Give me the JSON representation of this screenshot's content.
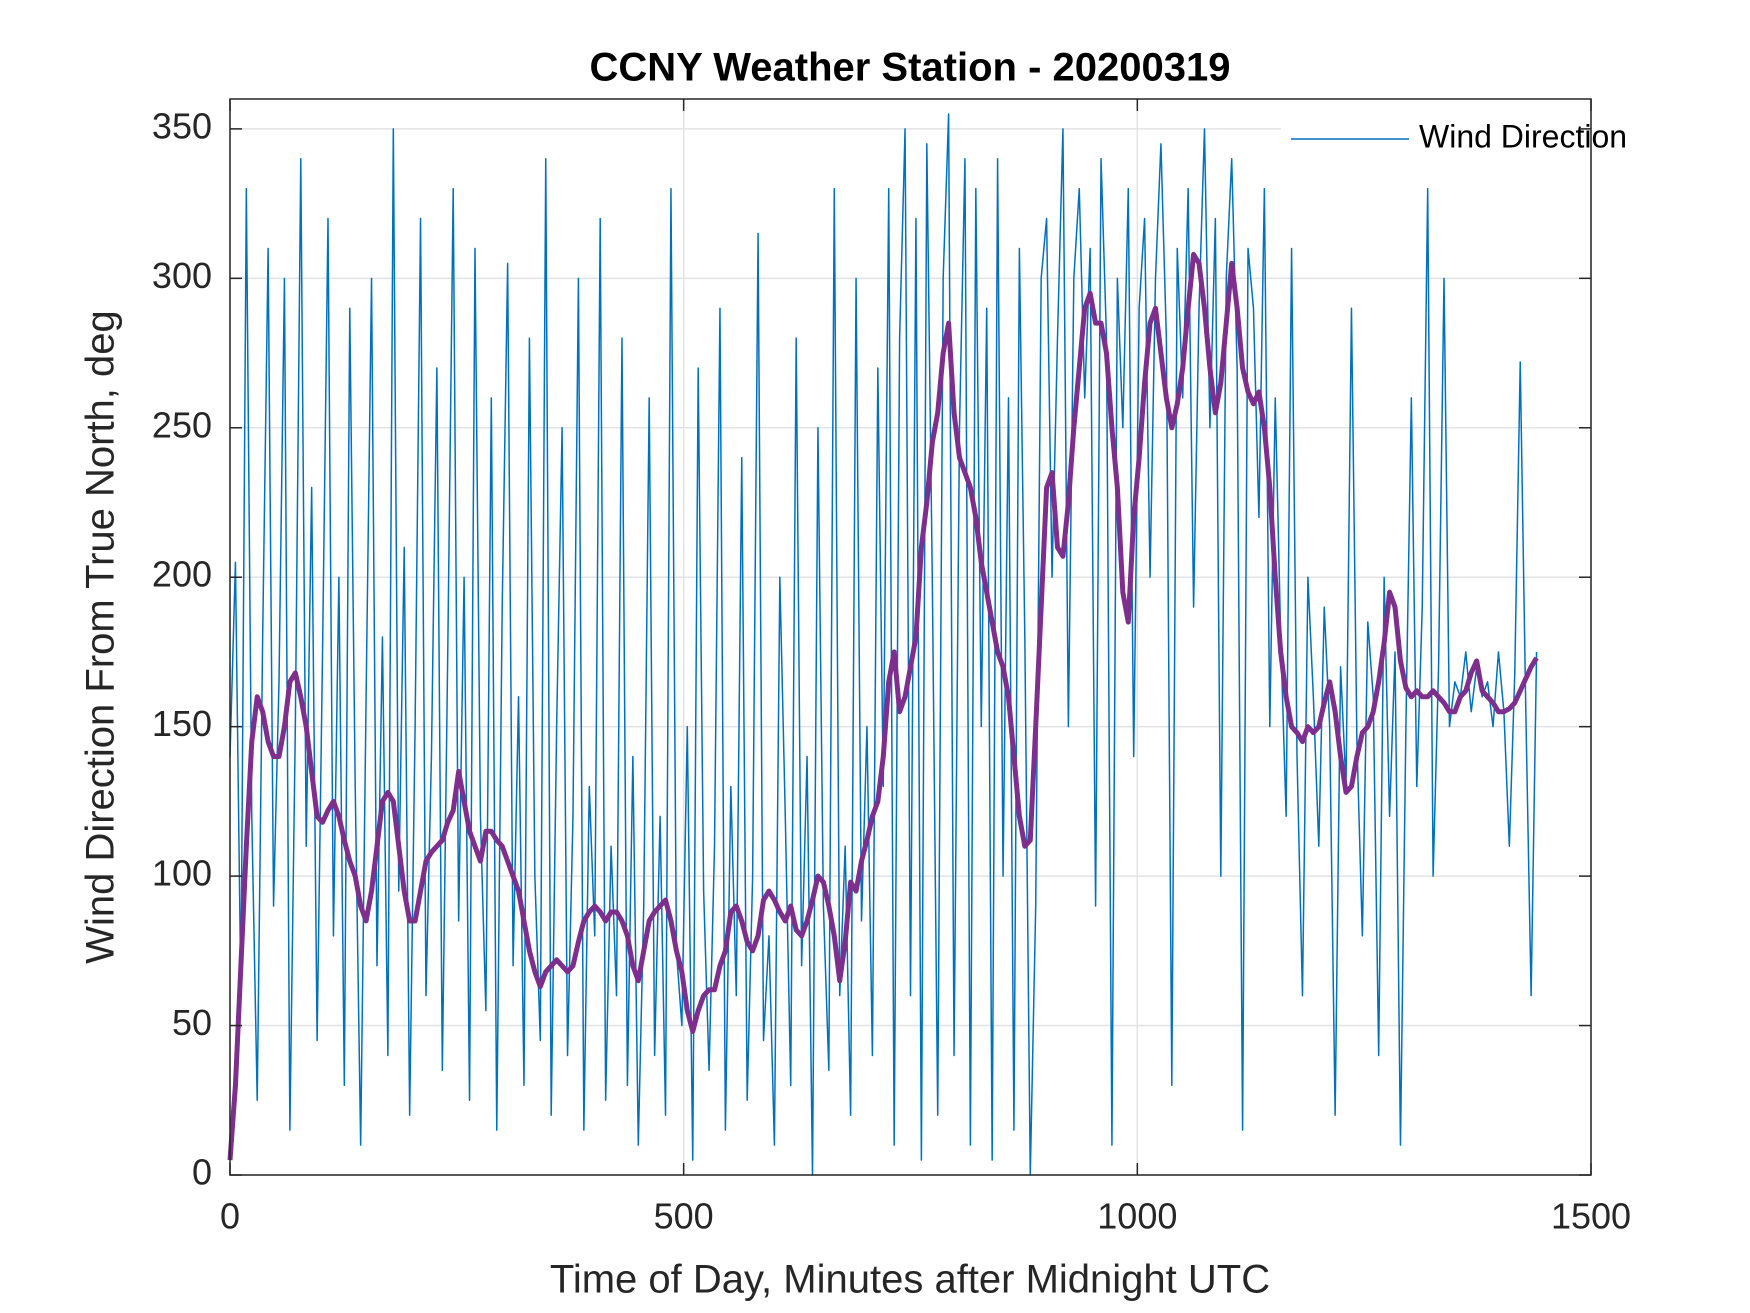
{
  "chart_data": {
    "type": "line",
    "title": "CCNY Weather Station - 20200319",
    "xlabel": "Time of Day, Minutes after Midnight UTC",
    "ylabel": "Wind Direction From True North, deg",
    "xlim": [
      0,
      1500
    ],
    "ylim": [
      0,
      360
    ],
    "xticks": [
      0,
      500,
      1000,
      1500
    ],
    "yticks": [
      0,
      50,
      100,
      150,
      200,
      250,
      300,
      350
    ],
    "grid": true,
    "legend": "upper-right",
    "x": [
      0,
      6,
      12,
      18,
      24,
      30,
      36,
      42,
      48,
      54,
      60,
      66,
      72,
      78,
      84,
      90,
      96,
      102,
      108,
      114,
      120,
      126,
      132,
      138,
      144,
      150,
      156,
      162,
      168,
      174,
      180,
      186,
      192,
      198,
      204,
      210,
      216,
      222,
      228,
      234,
      240,
      246,
      252,
      258,
      264,
      270,
      276,
      282,
      288,
      294,
      300,
      306,
      312,
      318,
      324,
      330,
      336,
      342,
      348,
      354,
      360,
      366,
      372,
      378,
      384,
      390,
      396,
      402,
      408,
      414,
      420,
      426,
      432,
      438,
      444,
      450,
      456,
      462,
      468,
      474,
      480,
      486,
      492,
      498,
      504,
      510,
      516,
      522,
      528,
      534,
      540,
      546,
      552,
      558,
      564,
      570,
      576,
      582,
      588,
      594,
      600,
      606,
      612,
      618,
      624,
      630,
      636,
      642,
      648,
      654,
      660,
      666,
      672,
      678,
      684,
      690,
      696,
      702,
      708,
      714,
      720,
      726,
      732,
      738,
      744,
      750,
      756,
      762,
      768,
      774,
      780,
      786,
      792,
      798,
      804,
      810,
      816,
      822,
      828,
      834,
      840,
      846,
      852,
      858,
      864,
      870,
      876,
      882,
      888,
      894,
      900,
      906,
      912,
      918,
      924,
      930,
      936,
      942,
      948,
      954,
      960,
      966,
      972,
      978,
      984,
      990,
      996,
      1002,
      1008,
      1014,
      1020,
      1026,
      1032,
      1038,
      1044,
      1050,
      1056,
      1062,
      1068,
      1074,
      1080,
      1086,
      1092,
      1098,
      1104,
      1110,
      1116,
      1122,
      1128,
      1134,
      1140,
      1146,
      1152,
      1158,
      1164,
      1170,
      1176,
      1182,
      1188,
      1194,
      1200,
      1206,
      1212,
      1218,
      1224,
      1230,
      1236,
      1242,
      1248,
      1254,
      1260,
      1266,
      1272,
      1278,
      1284,
      1290,
      1296,
      1302,
      1308,
      1314,
      1320,
      1326,
      1332,
      1338,
      1344,
      1350,
      1356,
      1362,
      1368,
      1374,
      1380,
      1386,
      1392,
      1398,
      1404,
      1410,
      1416,
      1422,
      1428,
      1434,
      1440
    ],
    "series": [
      {
        "name": "Wind Direction",
        "color": "#0072bd",
        "width": 1.5,
        "values": [
          140,
          205,
          60,
          330,
          120,
          25,
          180,
          310,
          90,
          165,
          300,
          15,
          150,
          340,
          110,
          230,
          45,
          175,
          320,
          80,
          200,
          30,
          290,
          130,
          10,
          160,
          300,
          70,
          180,
          40,
          350,
          95,
          210,
          20,
          150,
          320,
          60,
          140,
          270,
          35,
          175,
          330,
          85,
          200,
          25,
          310,
          120,
          55,
          260,
          15,
          190,
          305,
          70,
          160,
          30,
          280,
          100,
          45,
          340,
          20,
          150,
          250,
          40,
          120,
          300,
          15,
          130,
          80,
          320,
          25,
          110,
          60,
          280,
          30,
          140,
          10,
          90,
          260,
          40,
          120,
          20,
          330,
          75,
          50,
          150,
          5,
          270,
          95,
          35,
          110,
          290,
          15,
          130,
          60,
          240,
          25,
          100,
          315,
          45,
          80,
          10,
          200,
          120,
          30,
          280,
          70,
          140,
          0,
          250,
          90,
          35,
          330,
          60,
          110,
          20,
          300,
          85,
          150,
          40,
          270,
          130,
          330,
          10,
          280,
          350,
          60,
          320,
          5,
          345,
          200,
          20,
          300,
          355,
          40,
          250,
          340,
          10,
          330,
          150,
          290,
          5,
          340,
          100,
          260,
          15,
          310,
          180,
          0,
          90,
          300,
          320,
          200,
          280,
          350,
          150,
          300,
          330,
          260,
          310,
          90,
          340,
          280,
          10,
          300,
          250,
          330,
          140,
          290,
          320,
          200,
          300,
          345,
          280,
          30,
          310,
          260,
          330,
          190,
          290,
          350,
          250,
          320,
          100,
          300,
          340,
          270,
          15,
          310,
          290,
          220,
          330,
          150,
          260,
          180,
          120,
          310,
          140,
          60,
          200,
          160,
          110,
          190,
          150,
          20,
          170,
          130,
          290,
          145,
          80,
          185,
          160,
          40,
          200,
          120,
          175,
          10,
          150,
          260,
          130,
          190,
          330,
          100,
          170,
          300,
          150,
          165,
          160,
          175,
          155,
          170,
          160,
          165,
          150,
          175,
          155,
          110,
          168,
          272,
          158,
          60,
          175
        ]
      },
      {
        "color": "#7e2f8e",
        "width": 5,
        "values": [
          5,
          30,
          70,
          110,
          145,
          160,
          155,
          145,
          140,
          140,
          150,
          165,
          168,
          160,
          150,
          135,
          120,
          118,
          122,
          125,
          120,
          112,
          105,
          100,
          90,
          85,
          95,
          110,
          125,
          128,
          125,
          110,
          95,
          85,
          85,
          95,
          105,
          108,
          110,
          112,
          118,
          122,
          135,
          125,
          115,
          110,
          105,
          115,
          115,
          112,
          110,
          105,
          100,
          95,
          85,
          75,
          68,
          63,
          68,
          70,
          72,
          70,
          68,
          70,
          78,
          85,
          88,
          90,
          88,
          85,
          88,
          88,
          85,
          80,
          70,
          65,
          75,
          85,
          88,
          90,
          92,
          85,
          75,
          68,
          55,
          48,
          55,
          60,
          62,
          62,
          70,
          75,
          88,
          90,
          85,
          78,
          75,
          80,
          92,
          95,
          92,
          88,
          85,
          90,
          82,
          80,
          85,
          92,
          100,
          98,
          90,
          80,
          65,
          78,
          98,
          95,
          105,
          112,
          120,
          125,
          140,
          165,
          175,
          155,
          160,
          170,
          180,
          210,
          225,
          245,
          255,
          275,
          285,
          255,
          240,
          235,
          230,
          220,
          205,
          195,
          185,
          175,
          170,
          160,
          140,
          120,
          110,
          112,
          150,
          190,
          230,
          235,
          210,
          207,
          225,
          250,
          270,
          290,
          295,
          285,
          285,
          275,
          250,
          230,
          195,
          185,
          220,
          240,
          265,
          285,
          290,
          275,
          260,
          250,
          258,
          270,
          290,
          308,
          305,
          290,
          270,
          255,
          265,
          285,
          305,
          290,
          270,
          262,
          258,
          262,
          250,
          230,
          200,
          175,
          160,
          150,
          148,
          145,
          150,
          148,
          150,
          158,
          165,
          155,
          140,
          128,
          130,
          140,
          148,
          150,
          155,
          165,
          178,
          195,
          190,
          172,
          163,
          160,
          162,
          160,
          160,
          162,
          160,
          158,
          155,
          155,
          160,
          162,
          168,
          172,
          162,
          160,
          158,
          155,
          155,
          156,
          158,
          162,
          166,
          170,
          173
        ]
      }
    ]
  }
}
